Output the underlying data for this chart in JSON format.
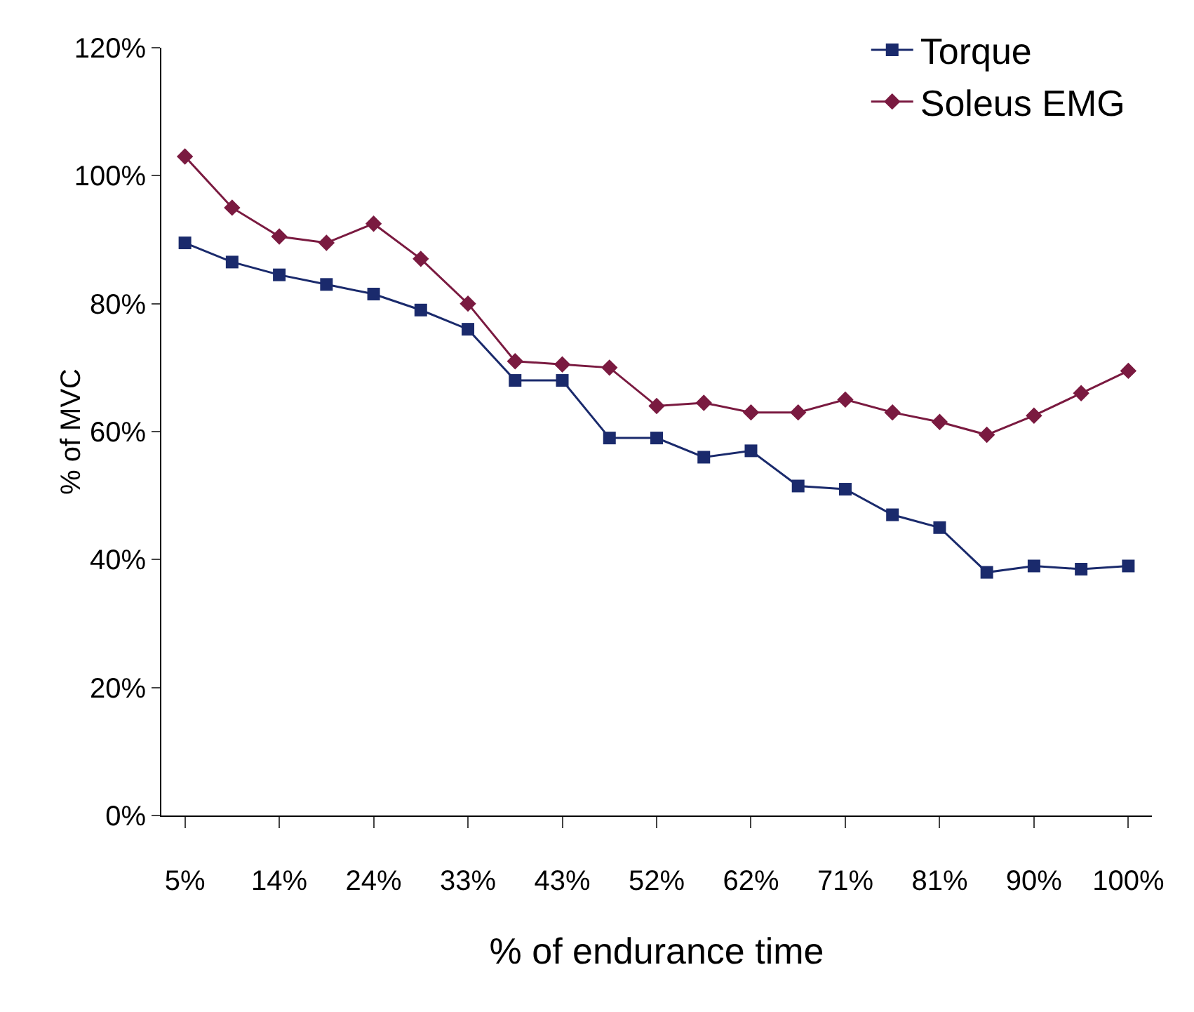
{
  "chart_data": {
    "type": "line",
    "xlabel": "% of endurance time",
    "ylabel": "% of MVC",
    "categories": [
      "5%",
      null,
      "14%",
      null,
      "24%",
      null,
      "33%",
      null,
      "43%",
      null,
      "52%",
      null,
      "62%",
      null,
      "71%",
      null,
      "81%",
      null,
      "90%",
      null,
      "100%"
    ],
    "ylim": [
      0,
      120
    ],
    "yticks": [
      {
        "value": 0,
        "label": "0%"
      },
      {
        "value": 20,
        "label": "20%"
      },
      {
        "value": 40,
        "label": "40%"
      },
      {
        "value": 60,
        "label": "60%"
      },
      {
        "value": 80,
        "label": "80%"
      },
      {
        "value": 100,
        "label": "100%"
      },
      {
        "value": 120,
        "label": "120%"
      }
    ],
    "grid": false,
    "legend": "top right",
    "line_style": "solid",
    "series": [
      {
        "name": "Torque",
        "color": "#1a2a6c",
        "marker": "square",
        "values": [
          89.5,
          86.5,
          84.5,
          83,
          81.5,
          79,
          76,
          68,
          68,
          59,
          59,
          56,
          57,
          51.5,
          51,
          47,
          45,
          38,
          39,
          38.5,
          39
        ]
      },
      {
        "name": "Soleus EMG",
        "color": "#7a1a40",
        "marker": "diamond",
        "values": [
          103,
          95,
          90.5,
          89.5,
          92.5,
          87,
          80,
          71,
          70.5,
          70,
          64,
          64.5,
          63,
          63,
          65,
          63,
          61.5,
          59.5,
          62.5,
          66,
          69.5
        ]
      }
    ]
  }
}
